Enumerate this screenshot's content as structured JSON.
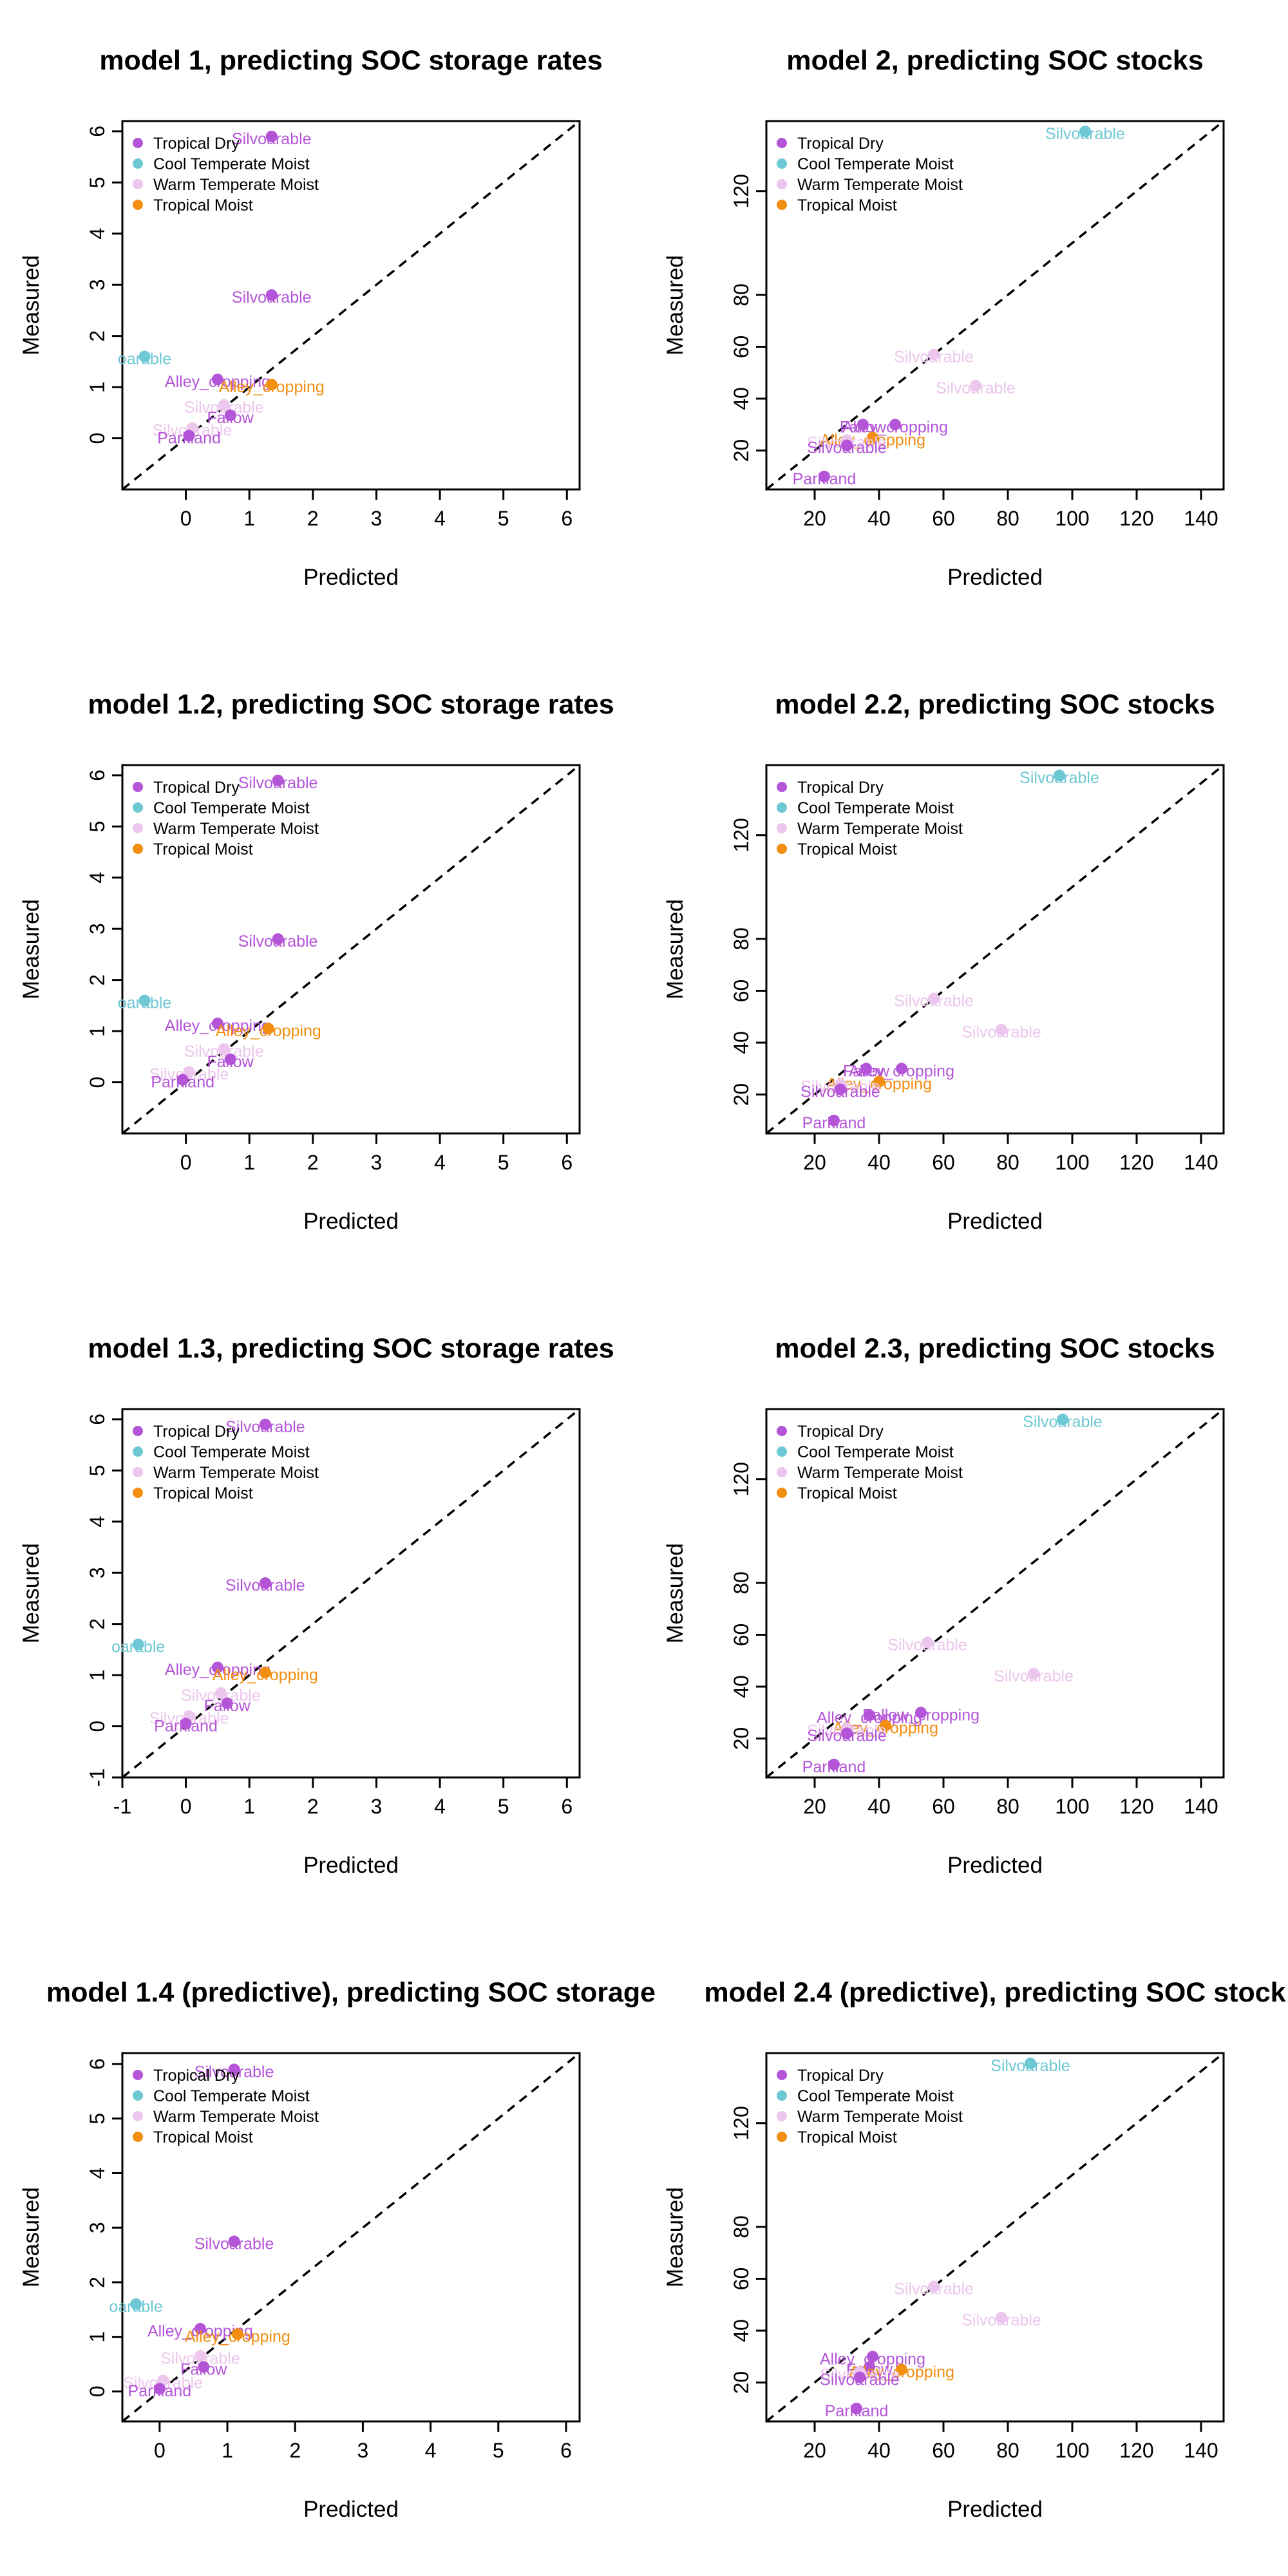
{
  "colors": {
    "Tropical Dry": "#b455d8",
    "Cool Temperate Moist": "#6dc8d4",
    "Warm Temperate Moist": "#ecc6ec",
    "Tropical Moist": "#f28e10"
  },
  "legend": [
    "Tropical Dry",
    "Cool Temperate Moist",
    "Warm Temperate Moist",
    "Tropical Moist"
  ],
  "shared_axes": {
    "xlabel": "Predicted",
    "ylabel": "Measured"
  },
  "chart_data": [
    {
      "type": "scatter",
      "title": "model 1, predicting SOC storage rates",
      "xlabel": "Predicted",
      "ylabel": "Measured",
      "xlim": [
        -1,
        6.2
      ],
      "ylim": [
        -1,
        6.2
      ],
      "xticks": [
        0,
        1,
        2,
        3,
        4,
        5,
        6
      ],
      "yticks": [
        0,
        1,
        2,
        3,
        4,
        5,
        6
      ],
      "identity_line": true,
      "points": [
        {
          "x": 1.35,
          "y": 5.9,
          "zone": "Tropical Dry",
          "label": "Silvoarable"
        },
        {
          "x": 1.35,
          "y": 2.8,
          "zone": "Tropical Dry",
          "label": "Silvoarable"
        },
        {
          "x": -0.65,
          "y": 1.6,
          "zone": "Cool Temperate Moist",
          "label": "oarable"
        },
        {
          "x": 0.5,
          "y": 1.15,
          "zone": "Tropical Dry",
          "label": "Alley_cropping"
        },
        {
          "x": 1.35,
          "y": 1.05,
          "zone": "Tropical Moist",
          "label": "Alley_cropping"
        },
        {
          "x": 0.6,
          "y": 0.65,
          "zone": "Warm Temperate Moist",
          "label": "Silvoarable"
        },
        {
          "x": 0.7,
          "y": 0.45,
          "zone": "Tropical Dry",
          "label": "Fallow"
        },
        {
          "x": 0.1,
          "y": 0.2,
          "zone": "Warm Temperate Moist",
          "label": "Silvoarable"
        },
        {
          "x": 0.05,
          "y": 0.05,
          "zone": "Tropical Dry",
          "label": "Parkland"
        }
      ]
    },
    {
      "type": "scatter",
      "title": "model 2, predicting SOC stocks",
      "xlabel": "Predicted",
      "ylabel": "Measured",
      "xlim": [
        5,
        147
      ],
      "ylim": [
        5,
        147
      ],
      "xticks": [
        20,
        40,
        60,
        80,
        100,
        120,
        140
      ],
      "yticks": [
        20,
        40,
        60,
        80,
        120
      ],
      "identity_line": true,
      "points": [
        {
          "x": 104,
          "y": 143,
          "zone": "Cool Temperate Moist",
          "label": "Silvoarable"
        },
        {
          "x": 57,
          "y": 57,
          "zone": "Warm Temperate Moist",
          "label": "Silvoarable"
        },
        {
          "x": 70,
          "y": 45,
          "zone": "Warm Temperate Moist",
          "label": "Silvoarable"
        },
        {
          "x": 45,
          "y": 30,
          "zone": "Tropical Dry",
          "label": "Alley_cropping"
        },
        {
          "x": 35,
          "y": 30,
          "zone": "Tropical Dry",
          "label": "Fallow"
        },
        {
          "x": 38,
          "y": 25,
          "zone": "Tropical Moist",
          "label": "Alley_cropping"
        },
        {
          "x": 30,
          "y": 24,
          "zone": "Warm Temperate Moist",
          "label": "Silvoarable"
        },
        {
          "x": 30,
          "y": 22,
          "zone": "Tropical Dry",
          "label": "Silvoarable"
        },
        {
          "x": 23,
          "y": 10,
          "zone": "Tropical Dry",
          "label": "Parkland"
        }
      ]
    },
    {
      "type": "scatter",
      "title": "model 1.2, predicting SOC storage rates",
      "xlabel": "Predicted",
      "ylabel": "Measured",
      "xlim": [
        -1,
        6.2
      ],
      "ylim": [
        -1,
        6.2
      ],
      "xticks": [
        0,
        1,
        2,
        3,
        4,
        5,
        6
      ],
      "yticks": [
        0,
        1,
        2,
        3,
        4,
        5,
        6
      ],
      "identity_line": true,
      "points": [
        {
          "x": 1.45,
          "y": 5.9,
          "zone": "Tropical Dry",
          "label": "Silvoarable"
        },
        {
          "x": 1.45,
          "y": 2.8,
          "zone": "Tropical Dry",
          "label": "Silvoarable"
        },
        {
          "x": -0.65,
          "y": 1.6,
          "zone": "Cool Temperate Moist",
          "label": "oarable"
        },
        {
          "x": 0.5,
          "y": 1.15,
          "zone": "Tropical Dry",
          "label": "Alley_cropping"
        },
        {
          "x": 1.3,
          "y": 1.05,
          "zone": "Tropical Moist",
          "label": "Alley_cropping"
        },
        {
          "x": 0.6,
          "y": 0.65,
          "zone": "Warm Temperate Moist",
          "label": "Silvoarable"
        },
        {
          "x": 0.7,
          "y": 0.45,
          "zone": "Tropical Dry",
          "label": "Fallow"
        },
        {
          "x": 0.05,
          "y": 0.2,
          "zone": "Warm Temperate Moist",
          "label": "Silvoarable"
        },
        {
          "x": -0.05,
          "y": 0.05,
          "zone": "Tropical Dry",
          "label": "Parkland"
        }
      ]
    },
    {
      "type": "scatter",
      "title": "model 2.2, predicting SOC stocks",
      "xlabel": "Predicted",
      "ylabel": "Measured",
      "xlim": [
        5,
        147
      ],
      "ylim": [
        5,
        147
      ],
      "xticks": [
        20,
        40,
        60,
        80,
        100,
        120,
        140
      ],
      "yticks": [
        20,
        40,
        60,
        80,
        120
      ],
      "identity_line": true,
      "points": [
        {
          "x": 96,
          "y": 143,
          "zone": "Cool Temperate Moist",
          "label": "Silvoarable"
        },
        {
          "x": 57,
          "y": 57,
          "zone": "Warm Temperate Moist",
          "label": "Silvoarable"
        },
        {
          "x": 78,
          "y": 45,
          "zone": "Warm Temperate Moist",
          "label": "Silvoarable"
        },
        {
          "x": 47,
          "y": 30,
          "zone": "Tropical Dry",
          "label": "Alley_cropping"
        },
        {
          "x": 36,
          "y": 30,
          "zone": "Tropical Dry",
          "label": "Fallow"
        },
        {
          "x": 40,
          "y": 25,
          "zone": "Tropical Moist",
          "label": "Alley_cropping"
        },
        {
          "x": 28,
          "y": 24,
          "zone": "Warm Temperate Moist",
          "label": "Silvoarable"
        },
        {
          "x": 28,
          "y": 22,
          "zone": "Tropical Dry",
          "label": "Silvoarable"
        },
        {
          "x": 26,
          "y": 10,
          "zone": "Tropical Dry",
          "label": "Parkland"
        }
      ]
    },
    {
      "type": "scatter",
      "title": "model 1.3, predicting SOC storage rates",
      "xlabel": "Predicted",
      "ylabel": "Measured",
      "xlim": [
        -1,
        6.2
      ],
      "ylim": [
        -1,
        6.2
      ],
      "xticks": [
        -1,
        0,
        1,
        2,
        3,
        4,
        5,
        6
      ],
      "yticks": [
        -1,
        0,
        1,
        2,
        3,
        4,
        5,
        6
      ],
      "identity_line": true,
      "points": [
        {
          "x": 1.25,
          "y": 5.9,
          "zone": "Tropical Dry",
          "label": "Silvoarable"
        },
        {
          "x": 1.25,
          "y": 2.8,
          "zone": "Tropical Dry",
          "label": "Silvoarable"
        },
        {
          "x": -0.75,
          "y": 1.6,
          "zone": "Cool Temperate Moist",
          "label": "oarable"
        },
        {
          "x": 0.5,
          "y": 1.15,
          "zone": "Tropical Dry",
          "label": "Alley_cropping"
        },
        {
          "x": 1.25,
          "y": 1.05,
          "zone": "Tropical Moist",
          "label": "Alley_cropping"
        },
        {
          "x": 0.55,
          "y": 0.65,
          "zone": "Warm Temperate Moist",
          "label": "Silvoarable"
        },
        {
          "x": 0.65,
          "y": 0.45,
          "zone": "Tropical Dry",
          "label": "Fallow"
        },
        {
          "x": 0.05,
          "y": 0.2,
          "zone": "Warm Temperate Moist",
          "label": "Silvoarable"
        },
        {
          "x": 0.0,
          "y": 0.05,
          "zone": "Tropical Dry",
          "label": "Parkland"
        }
      ]
    },
    {
      "type": "scatter",
      "title": "model 2.3, predicting SOC stocks",
      "xlabel": "Predicted",
      "ylabel": "Measured",
      "xlim": [
        5,
        147
      ],
      "ylim": [
        5,
        147
      ],
      "xticks": [
        20,
        40,
        60,
        80,
        100,
        120,
        140
      ],
      "yticks": [
        20,
        40,
        60,
        80,
        120
      ],
      "identity_line": true,
      "points": [
        {
          "x": 97,
          "y": 143,
          "zone": "Cool Temperate Moist",
          "label": "Silvoarable"
        },
        {
          "x": 55,
          "y": 57,
          "zone": "Warm Temperate Moist",
          "label": "Silvoarable"
        },
        {
          "x": 88,
          "y": 45,
          "zone": "Warm Temperate Moist",
          "label": "Silvoarable"
        },
        {
          "x": 53,
          "y": 30,
          "zone": "Tropical Dry",
          "label": "Fallow_cropping"
        },
        {
          "x": 37,
          "y": 29,
          "zone": "Tropical Dry",
          "label": "Alley_cropping"
        },
        {
          "x": 42,
          "y": 25,
          "zone": "Tropical Moist",
          "label": "Alley_cropping"
        },
        {
          "x": 30,
          "y": 24,
          "zone": "Warm Temperate Moist",
          "label": "Silvoarable"
        },
        {
          "x": 30,
          "y": 22,
          "zone": "Tropical Dry",
          "label": "Silvoarable"
        },
        {
          "x": 26,
          "y": 10,
          "zone": "Tropical Dry",
          "label": "Parkland"
        }
      ]
    },
    {
      "type": "scatter",
      "title": "model 1.4 (predictive), predicting SOC storage",
      "xlabel": "Predicted",
      "ylabel": "Measured",
      "xlim": [
        -0.55,
        6.2
      ],
      "ylim": [
        -0.55,
        6.2
      ],
      "xticks": [
        0,
        1,
        2,
        3,
        4,
        5,
        6
      ],
      "yticks": [
        0,
        1,
        2,
        3,
        4,
        5,
        6
      ],
      "identity_line": true,
      "points": [
        {
          "x": 1.1,
          "y": 5.9,
          "zone": "Tropical Dry",
          "label": "Silvoarable"
        },
        {
          "x": 1.1,
          "y": 2.75,
          "zone": "Tropical Dry",
          "label": "Silvoarable"
        },
        {
          "x": -0.35,
          "y": 1.6,
          "zone": "Cool Temperate Moist",
          "label": "oarable"
        },
        {
          "x": 0.6,
          "y": 1.15,
          "zone": "Tropical Dry",
          "label": "Alley_cropping"
        },
        {
          "x": 1.15,
          "y": 1.05,
          "zone": "Tropical Moist",
          "label": "Alley_cropping"
        },
        {
          "x": 0.6,
          "y": 0.65,
          "zone": "Warm Temperate Moist",
          "label": "Silvoarable"
        },
        {
          "x": 0.65,
          "y": 0.45,
          "zone": "Tropical Dry",
          "label": "Fallow"
        },
        {
          "x": 0.05,
          "y": 0.2,
          "zone": "Warm Temperate Moist",
          "label": "Silvoarable"
        },
        {
          "x": 0.0,
          "y": 0.05,
          "zone": "Tropical Dry",
          "label": "Parkland"
        }
      ]
    },
    {
      "type": "scatter",
      "title": "model 2.4 (predictive), predicting SOC stock",
      "xlabel": "Predicted",
      "ylabel": "Measured",
      "xlim": [
        5,
        147
      ],
      "ylim": [
        5,
        147
      ],
      "xticks": [
        20,
        40,
        60,
        80,
        100,
        120,
        140
      ],
      "yticks": [
        20,
        40,
        60,
        80,
        120
      ],
      "identity_line": true,
      "points": [
        {
          "x": 87,
          "y": 143,
          "zone": "Cool Temperate Moist",
          "label": "Silvoarable"
        },
        {
          "x": 57,
          "y": 57,
          "zone": "Warm Temperate Moist",
          "label": "Silvoarable"
        },
        {
          "x": 78,
          "y": 45,
          "zone": "Warm Temperate Moist",
          "label": "Silvoarable"
        },
        {
          "x": 38,
          "y": 30,
          "zone": "Tropical Dry",
          "label": "Alley_cropping"
        },
        {
          "x": 37,
          "y": 26,
          "zone": "Tropical Dry",
          "label": "Fallow"
        },
        {
          "x": 47,
          "y": 25,
          "zone": "Tropical Moist",
          "label": "Alley_cropping"
        },
        {
          "x": 34,
          "y": 24,
          "zone": "Warm Temperate Moist",
          "label": "Silvoarable"
        },
        {
          "x": 34,
          "y": 22,
          "zone": "Tropical Dry",
          "label": "Silvoarable"
        },
        {
          "x": 33,
          "y": 10,
          "zone": "Tropical Dry",
          "label": "Parkland"
        }
      ]
    }
  ]
}
